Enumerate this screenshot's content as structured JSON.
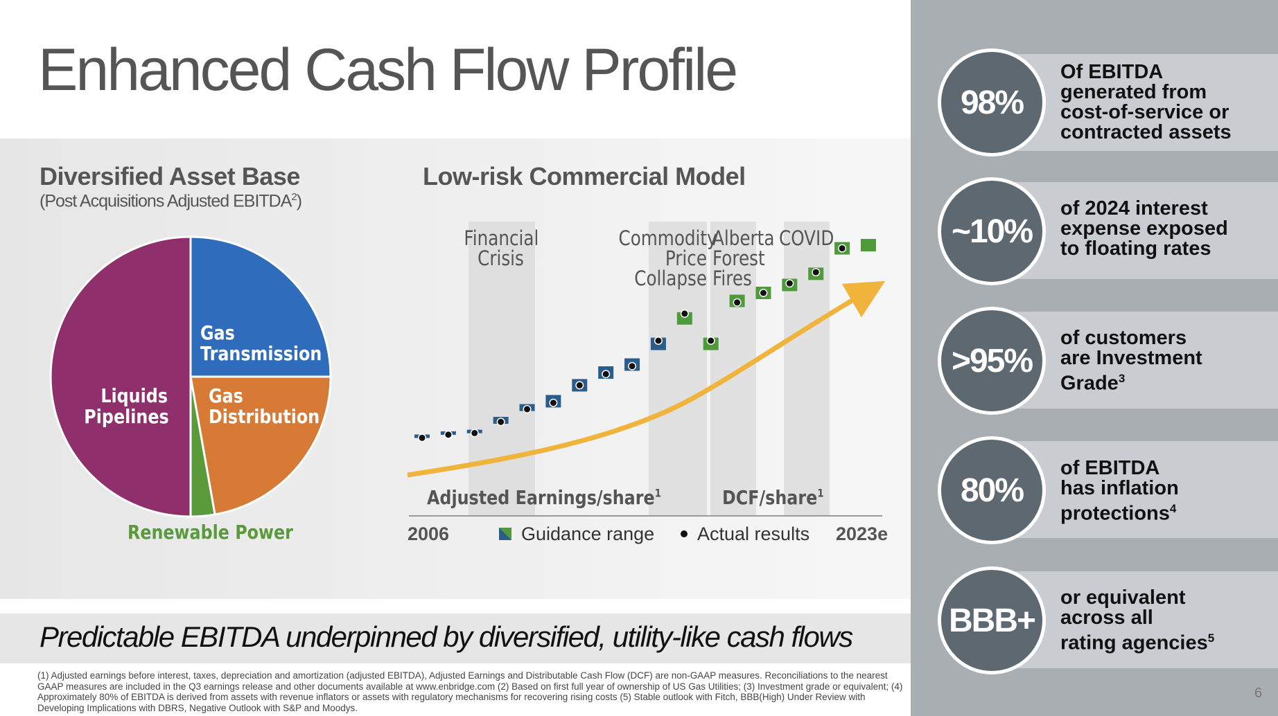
{
  "title": "Enhanced Cash Flow Profile",
  "left": {
    "heading": "Diversified Asset Base",
    "subheading_prefix": "(Post Acquisitions Adjusted EBITDA",
    "subheading_sup": "2",
    "subheading_suffix": ")"
  },
  "pie": {
    "colors": {
      "liquids": "#8f2f6b",
      "gas_transmission": "#2f6cbb",
      "gas_distribution": "#d67a35",
      "renewable": "#5a9a3a"
    },
    "labels": {
      "gas_transmission_1": "Gas",
      "gas_transmission_2": "Transmission",
      "gas_distribution_1": "Gas",
      "gas_distribution_2": "Distribution",
      "liquids_1": "Liquids",
      "liquids_2": "Pipelines",
      "renewable": "Renewable Power"
    }
  },
  "chart": {
    "heading": "Low-risk Commercial Model",
    "events": {
      "financial_1": "Financial",
      "financial_2": "Crisis",
      "commodity_1": "Commodity",
      "commodity_2": "Price",
      "commodity_3": "Collapse",
      "alberta_1": "Alberta",
      "alberta_2": "Forest",
      "alberta_3": "Fires",
      "covid": "COVID"
    },
    "series_label_1": "Adjusted Earnings/share",
    "series_label_1_sup": "1",
    "series_label_2": "DCF/share",
    "series_label_2_sup": "1",
    "start_year": "2006",
    "end_year": "2023e",
    "legend_guidance": "Guidance range",
    "legend_actual": "Actual results"
  },
  "chart_data": {
    "type": "scatter",
    "title": "Low-risk Commercial Model",
    "xlabel": "",
    "ylabel": "",
    "x": [
      "2006",
      "2007",
      "2008",
      "2009",
      "2010",
      "2011",
      "2012",
      "2013",
      "2014",
      "2015",
      "2016",
      "2017",
      "2018",
      "2019",
      "2020",
      "2021",
      "2022",
      "2023e"
    ],
    "series": [
      {
        "name": "Guidance range (Adjusted Earnings/share)",
        "color": "#2b5d8a",
        "values": [
          1,
          2,
          3,
          4,
          5,
          6,
          7,
          8,
          9,
          10,
          null,
          null,
          null,
          null,
          null,
          null,
          null,
          null
        ]
      },
      {
        "name": "Guidance range (DCF/share)",
        "color": "#4f9a3a",
        "values": [
          null,
          null,
          null,
          null,
          null,
          null,
          null,
          null,
          null,
          null,
          11,
          12,
          13,
          14,
          15,
          16,
          17,
          18
        ]
      }
    ],
    "y_index_positions": [
      50,
      52,
      53,
      60,
      68,
      72,
      82,
      90,
      95,
      108,
      124,
      108,
      135,
      140,
      145,
      152,
      168,
      170
    ],
    "actual_positions": [
      49,
      51,
      52,
      59,
      67,
      71,
      82,
      89,
      94,
      110,
      127,
      110,
      134,
      140,
      146,
      153,
      168,
      null
    ],
    "shaded_periods": [
      "Financial Crisis",
      "Commodity Price Collapse",
      "Alberta Forest Fires",
      "COVID"
    ],
    "legend": [
      "Guidance range",
      "Actual results"
    ]
  },
  "banner": "Predictable EBITDA underpinned by diversified, utility-like cash flows",
  "footnotes": "(1) Adjusted earnings before interest, taxes, depreciation and amortization (adjusted EBITDA), Adjusted Earnings and Distributable Cash Flow (DCF) are non-GAAP measures. Reconciliations to the nearest GAAP measures are included in the Q3 earnings release and other documents available at www.enbridge.com (2) Based on first full year of ownership of US Gas Utilities; (3) Investment grade or equivalent; (4) Approximately 80% of EBITDA is derived from assets with revenue inflators or assets with regulatory mechanisms for recovering rising costs (5) Stable outlook with Fitch, BBB(High) Under Review with Developing Implications with DBRS, Negative Outlook with S&P and Moodys.",
  "stats": [
    {
      "value": "98%",
      "line1": "Of EBITDA",
      "line2": "generated from",
      "line3": "cost-of-service or",
      "line4": "contracted assets"
    },
    {
      "value": "~10%",
      "line1": "of 2024 interest",
      "line2": "expense exposed",
      "line3": "to floating rates"
    },
    {
      "value": ">95%",
      "line1": "of customers",
      "line2": "are Investment",
      "line3": "Grade",
      "sup": "3"
    },
    {
      "value": "80%",
      "line1": "of EBITDA",
      "line2": "has inflation",
      "line3": "protections",
      "sup": "4"
    },
    {
      "value": "BBB+",
      "line1": "or equivalent",
      "line2": "across all",
      "line3": "rating agencies",
      "sup": "5"
    }
  ],
  "page_number": "6"
}
